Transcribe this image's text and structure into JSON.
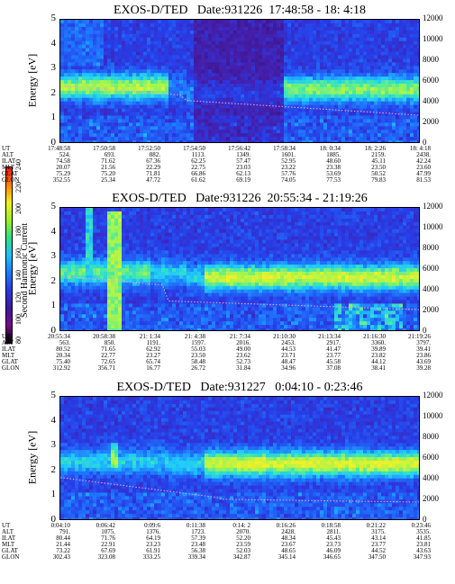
{
  "colorbar": {
    "label": "Second Harmonic Current",
    "ticks": [
      "80",
      "100",
      "120",
      "140",
      "160",
      "180",
      "200",
      "220",
      "240"
    ],
    "colors": [
      "#000000",
      "#7a0a8a",
      "#3a1aa0",
      "#2a3ae0",
      "#1a7aff",
      "#20c0ff",
      "#30e080",
      "#a0f020",
      "#f0f020",
      "#ff8000",
      "#ff1010"
    ]
  },
  "axes": {
    "left_label": "Energy [eV]",
    "right_label": "Temperature [K]",
    "left_ticks": [
      "0",
      "1",
      "2",
      "3",
      "4",
      "5"
    ],
    "right_ticks": [
      "0",
      "2000",
      "4000",
      "6000",
      "8000",
      "10000",
      "12000"
    ]
  },
  "ephemeris_labels": [
    "UT",
    "ALT",
    "ILAT",
    "MLT",
    "GLAT",
    "GLON"
  ],
  "chart_data": [
    {
      "type": "heatmap",
      "title": "EXOS-D/TED   Date:931226  17:48:58 - 18: 4:18",
      "ylabel": "Energy [eV]",
      "y2label": "Temperature [K]",
      "ylim": [
        0,
        5
      ],
      "y2lim": [
        0,
        12000
      ],
      "ut": [
        "17:48:58",
        "17:50:58",
        "17:52:50",
        "17:54:50",
        "17:56:42",
        "17:58:34",
        "18: 0:34",
        "18: 2:26",
        "18: 4:18"
      ],
      "ALT": [
        "524.",
        "693.",
        "882.",
        "1113.",
        "1349.",
        "1601.",
        "1885.",
        "2159.",
        "2438."
      ],
      "ILAT": [
        "74.58",
        "71.62",
        "67.36",
        "62.25",
        "57.47",
        "52.95",
        "48.60",
        "45.11",
        "42.24"
      ],
      "MLT": [
        "20.07",
        "21.56",
        "22.29",
        "22.75",
        "23.03",
        "23.22",
        "23.38",
        "23.50",
        "23.60"
      ],
      "GLAT": [
        "75.29",
        "75.20",
        "71.81",
        "66.86",
        "62.13",
        "57.76",
        "53.69",
        "50.52",
        "47.99"
      ],
      "GLON": [
        "352.55",
        "25.34",
        "47.72",
        "61.62",
        "69.19",
        "74.05",
        "77.53",
        "79.83",
        "81.53"
      ]
    },
    {
      "type": "heatmap",
      "title": "EXOS-D/TED   Date:931226  20:55:34 - 21:19:26",
      "ylabel": "Energy [eV]",
      "y2label": "Temperature [K]",
      "ylim": [
        0,
        5
      ],
      "y2lim": [
        0,
        12000
      ],
      "ut": [
        "20:55:34",
        "20:58:38",
        "21: 1:34",
        "21: 4:38",
        "21: 7:34",
        "21:10:30",
        "21:13:34",
        "21:16:30",
        "21:19:26"
      ],
      "ALT": [
        "563.",
        "850.",
        "1191.",
        "1597.",
        "2016.",
        "2453.",
        "2917.",
        "3360.",
        "3797."
      ],
      "ILAT": [
        "80.52",
        "71.65",
        "62.92",
        "55.03",
        "49.00",
        "44.53",
        "41.47",
        "39.89",
        "39.41"
      ],
      "MLT": [
        "20.34",
        "22.77",
        "23.27",
        "23.50",
        "23.62",
        "23.71",
        "23.77",
        "23.82",
        "23.86"
      ],
      "GLAT": [
        "75.40",
        "72.65",
        "65.74",
        "58.48",
        "52.73",
        "48.47",
        "45.58",
        "44.12",
        "43.69"
      ],
      "GLON": [
        "312.92",
        "356.71",
        "16.77",
        "26.72",
        "31.84",
        "34.96",
        "37.08",
        "38.41",
        "39.28"
      ]
    },
    {
      "type": "heatmap",
      "title": "EXOS-D/TED   Date:931227   0:04:10 - 0:23:46",
      "ylabel": "Energy [eV]",
      "y2label": "Temperature [K]",
      "ylim": [
        0,
        5
      ],
      "y2lim": [
        0,
        12000
      ],
      "ut": [
        "0:04:10",
        "0:06:42",
        "0:09:6",
        "0:11:38",
        "0:14: 2",
        "0:16:26",
        "0:18:58",
        "0:21:22",
        "0:23:46"
      ],
      "ALT": [
        "791.",
        "1075.",
        "1376.",
        "1723.",
        "2070.",
        "2428.",
        "2811.",
        "3175.",
        "3535."
      ],
      "ILAT": [
        "80.44",
        "71.76",
        "64.19",
        "57.39",
        "52.20",
        "48.34",
        "45.43",
        "43.14",
        "41.85"
      ],
      "MLT": [
        "21.44",
        "22.91",
        "23.23",
        "23.48",
        "23.59",
        "23.67",
        "23.73",
        "23.77",
        "23.81"
      ],
      "GLAT": [
        "73.22",
        "67.69",
        "61.91",
        "56.38",
        "52.03",
        "48.65",
        "46.09",
        "44.52",
        "43.63"
      ],
      "GLON": [
        "302.43",
        "323.08",
        "333.25",
        "339.34",
        "342.87",
        "345.14",
        "346.65",
        "347.50",
        "347.93"
      ]
    }
  ]
}
